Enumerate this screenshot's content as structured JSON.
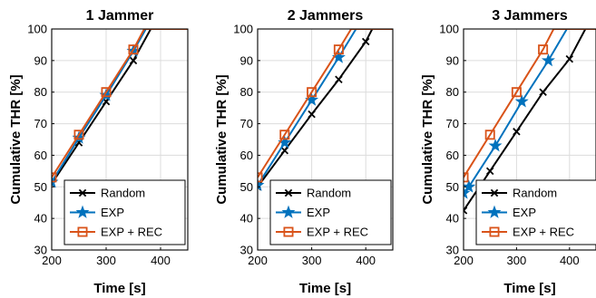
{
  "chart_data": [
    {
      "type": "line",
      "title": "1 Jammer",
      "xlabel": "Time [s]",
      "ylabel": "Cumulative THR [%]",
      "xlim": [
        200,
        450
      ],
      "ylim": [
        30,
        100
      ],
      "xticks": [
        200,
        300,
        400
      ],
      "yticks": [
        30,
        40,
        50,
        60,
        70,
        80,
        90,
        100
      ],
      "grid": true,
      "legend": "bottom-right",
      "series": [
        {
          "name": "Random",
          "color": "#000000",
          "marker": "x",
          "points": [
            [
              200,
              51
            ],
            [
              250,
              64
            ],
            [
              300,
              77
            ],
            [
              350,
              90
            ],
            [
              382,
              100
            ],
            [
              450,
              100
            ]
          ]
        },
        {
          "name": "EXP",
          "color": "#0072BD",
          "marker": "star",
          "points": [
            [
              200,
              51.5
            ],
            [
              250,
              65.5
            ],
            [
              300,
              79
            ],
            [
              350,
              93
            ],
            [
              373,
              100
            ],
            [
              450,
              100
            ]
          ]
        },
        {
          "name": "EXP + REC",
          "color": "#D95319",
          "marker": "square",
          "points": [
            [
              200,
              53
            ],
            [
              250,
              66.5
            ],
            [
              300,
              80
            ],
            [
              350,
              93.5
            ],
            [
              370,
              100
            ],
            [
              450,
              100
            ]
          ]
        }
      ]
    },
    {
      "type": "line",
      "title": "2 Jammers",
      "xlabel": "Time [s]",
      "ylabel": "Cumulative THR [%]",
      "xlim": [
        200,
        450
      ],
      "ylim": [
        30,
        100
      ],
      "xticks": [
        200,
        300,
        400
      ],
      "yticks": [
        30,
        40,
        50,
        60,
        70,
        80,
        90,
        100
      ],
      "grid": true,
      "legend": "bottom-right",
      "series": [
        {
          "name": "Random",
          "color": "#000000",
          "marker": "x",
          "points": [
            [
              200,
              50
            ],
            [
              250,
              61.5
            ],
            [
              300,
              73
            ],
            [
              350,
              84
            ],
            [
              400,
              96
            ],
            [
              412,
              100
            ],
            [
              450,
              100
            ]
          ]
        },
        {
          "name": "EXP",
          "color": "#0072BD",
          "marker": "star",
          "points": [
            [
              200,
              50.5
            ],
            [
              250,
              64
            ],
            [
              300,
              77.5
            ],
            [
              350,
              91
            ],
            [
              382,
              100
            ],
            [
              450,
              100
            ]
          ]
        },
        {
          "name": "EXP + REC",
          "color": "#D95319",
          "marker": "square",
          "points": [
            [
              200,
              53
            ],
            [
              250,
              66.5
            ],
            [
              300,
              80
            ],
            [
              350,
              93.5
            ],
            [
              373,
              100
            ],
            [
              450,
              100
            ]
          ]
        }
      ]
    },
    {
      "type": "line",
      "title": "3 Jammers",
      "xlabel": "Time [s]",
      "ylabel": "Cumulative THR [%]",
      "xlim": [
        200,
        450
      ],
      "ylim": [
        30,
        100
      ],
      "xticks": [
        200,
        300,
        400
      ],
      "yticks": [
        30,
        40,
        50,
        60,
        70,
        80,
        90,
        100
      ],
      "grid": true,
      "legend": "bottom-right",
      "series": [
        {
          "name": "Random",
          "color": "#000000",
          "marker": "x",
          "points": [
            [
              200,
              42.5
            ],
            [
              250,
              55
            ],
            [
              300,
              67.5
            ],
            [
              350,
              80
            ],
            [
              400,
              90.5
            ],
            [
              430,
              100
            ],
            [
              450,
              100
            ]
          ]
        },
        {
          "name": "EXP",
          "color": "#0072BD",
          "marker": "star",
          "points": [
            [
              200,
              48
            ],
            [
              210,
              50
            ],
            [
              260,
              63
            ],
            [
              310,
              77
            ],
            [
              360,
              90
            ],
            [
              395,
              100
            ],
            [
              450,
              100
            ]
          ]
        },
        {
          "name": "EXP + REC",
          "color": "#D95319",
          "marker": "square",
          "points": [
            [
              200,
              53
            ],
            [
              250,
              66.5
            ],
            [
              300,
              80
            ],
            [
              350,
              93.5
            ],
            [
              370,
              100
            ],
            [
              450,
              100
            ]
          ]
        }
      ]
    }
  ]
}
